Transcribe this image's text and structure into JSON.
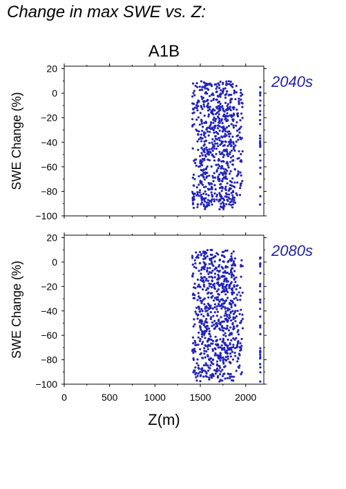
{
  "heading": "Change in max SWE vs. Z:",
  "chart_data": [
    {
      "type": "scatter",
      "title": "A1B",
      "period_label": "2040s",
      "xlabel": "",
      "ylabel": "SWE Change (%)",
      "xlim": [
        0,
        2200
      ],
      "ylim": [
        -100,
        22
      ],
      "xticks": [
        0,
        500,
        1000,
        1500,
        2000
      ],
      "yticks": [
        -100,
        -80,
        -60,
        -40,
        -20,
        0,
        20
      ],
      "x_tick_labels_shown": false,
      "grid": false,
      "marker_color": "#2222bb",
      "series": [
        {
          "columns": [
            {
              "x": 1430,
              "y_min": -95,
              "y_max": 10,
              "n": 40
            },
            {
              "x": 1470,
              "y_min": -93,
              "y_max": 9,
              "n": 35
            },
            {
              "x": 1510,
              "y_min": -95,
              "y_max": 10,
              "n": 60
            },
            {
              "x": 1550,
              "y_min": -95,
              "y_max": 10,
              "n": 70
            },
            {
              "x": 1590,
              "y_min": -93,
              "y_max": 10,
              "n": 60
            },
            {
              "x": 1630,
              "y_min": -92,
              "y_max": 9,
              "n": 55
            },
            {
              "x": 1670,
              "y_min": -90,
              "y_max": 8,
              "n": 50
            },
            {
              "x": 1710,
              "y_min": -95,
              "y_max": 10,
              "n": 70
            },
            {
              "x": 1750,
              "y_min": -95,
              "y_max": 10,
              "n": 75
            },
            {
              "x": 1790,
              "y_min": -94,
              "y_max": 10,
              "n": 70
            },
            {
              "x": 1830,
              "y_min": -92,
              "y_max": 10,
              "n": 60
            },
            {
              "x": 1870,
              "y_min": -95,
              "y_max": 9,
              "n": 50
            },
            {
              "x": 1910,
              "y_min": -85,
              "y_max": 8,
              "n": 30
            },
            {
              "x": 1950,
              "y_min": -88,
              "y_max": 6,
              "n": 30
            },
            {
              "x": 2160,
              "y_min": -92,
              "y_max": 9,
              "n": 28
            }
          ]
        }
      ]
    },
    {
      "type": "scatter",
      "title": "",
      "period_label": "2080s",
      "xlabel": "Z(m)",
      "ylabel": "SWE Change (%)",
      "xlim": [
        0,
        2200
      ],
      "ylim": [
        -100,
        22
      ],
      "xticks": [
        0,
        500,
        1000,
        1500,
        2000
      ],
      "yticks": [
        -100,
        -80,
        -60,
        -40,
        -20,
        0,
        20
      ],
      "x_tick_labels_shown": true,
      "grid": false,
      "marker_color": "#2222bb",
      "series": [
        {
          "columns": [
            {
              "x": 1430,
              "y_min": -98,
              "y_max": 8,
              "n": 40
            },
            {
              "x": 1470,
              "y_min": -98,
              "y_max": 8,
              "n": 35
            },
            {
              "x": 1510,
              "y_min": -98,
              "y_max": 9,
              "n": 60
            },
            {
              "x": 1550,
              "y_min": -98,
              "y_max": 9,
              "n": 70
            },
            {
              "x": 1590,
              "y_min": -98,
              "y_max": 10,
              "n": 65
            },
            {
              "x": 1630,
              "y_min": -98,
              "y_max": 10,
              "n": 60
            },
            {
              "x": 1670,
              "y_min": -98,
              "y_max": 9,
              "n": 55
            },
            {
              "x": 1710,
              "y_min": -98,
              "y_max": 10,
              "n": 70
            },
            {
              "x": 1750,
              "y_min": -98,
              "y_max": 10,
              "n": 75
            },
            {
              "x": 1790,
              "y_min": -98,
              "y_max": 10,
              "n": 75
            },
            {
              "x": 1830,
              "y_min": -98,
              "y_max": 9,
              "n": 65
            },
            {
              "x": 1870,
              "y_min": -98,
              "y_max": 10,
              "n": 55
            },
            {
              "x": 1910,
              "y_min": -90,
              "y_max": 2,
              "n": 30
            },
            {
              "x": 1950,
              "y_min": -95,
              "y_max": 2,
              "n": 30
            },
            {
              "x": 2160,
              "y_min": -98,
              "y_max": 7,
              "n": 30
            }
          ]
        }
      ]
    }
  ]
}
